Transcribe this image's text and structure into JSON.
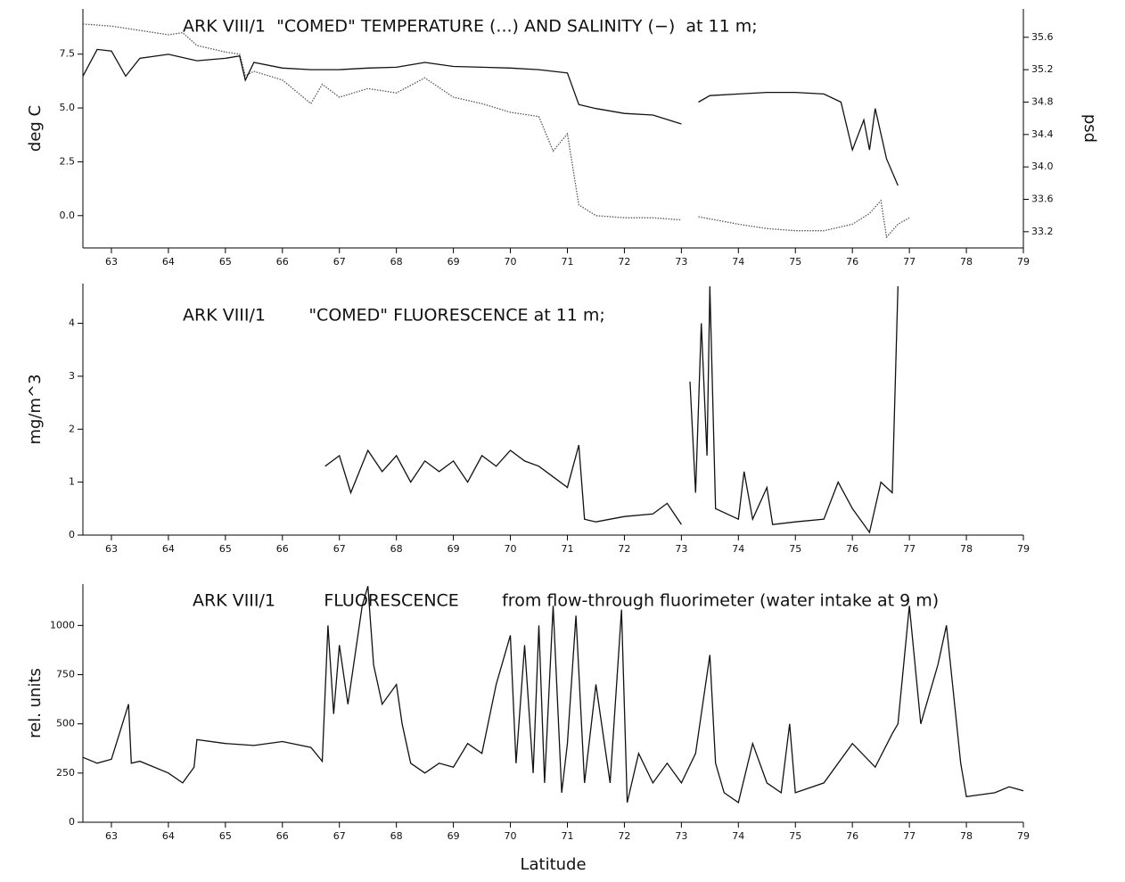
{
  "chart_data": [
    {
      "type": "line",
      "title": "ARK VIII/1  \"COMED\" TEMPERATURE (...) AND SALINITY (−)  at 11 m;",
      "y_label": "deg C",
      "y2_label": "psd",
      "xlim": [
        62.5,
        79
      ],
      "xticks": [
        63,
        64,
        65,
        66,
        67,
        68,
        69,
        70,
        71,
        72,
        73,
        74,
        75,
        76,
        77,
        78,
        79
      ],
      "ylim": [
        -1.5,
        9.6
      ],
      "yticks": [
        {
          "value": 0,
          "label": "0.0"
        },
        2.5,
        {
          "value": 5,
          "label": "5.0"
        },
        7.5
      ],
      "y2lim": [
        33.0,
        35.95
      ],
      "y2ticks": [
        33.2,
        33.6,
        {
          "value": 34,
          "label": "34.0"
        },
        34.4,
        34.8,
        35.2,
        35.6
      ],
      "series": [
        {
          "name": "TEMPERATURE",
          "color": "#555555",
          "style": "dotted",
          "axis": "y",
          "x": [
            62.5,
            63,
            63.5,
            64,
            64.25,
            64.5,
            65,
            65.25,
            65.35,
            65.5,
            66,
            66.5,
            66.7,
            67,
            67.5,
            68,
            68.5,
            69,
            69.5,
            70,
            70.5,
            70.75,
            71,
            71.2,
            71.5,
            72,
            72.5,
            73,
            73.1,
            73.3,
            74,
            74.5,
            75,
            75.5,
            76,
            76.3,
            76.5,
            76.6,
            76.8,
            77
          ],
          "values": [
            8.9,
            8.8,
            8.6,
            8.4,
            8.5,
            7.9,
            7.6,
            7.5,
            6.5,
            6.7,
            6.3,
            5.2,
            6.1,
            5.5,
            5.9,
            5.7,
            6.4,
            5.5,
            5.2,
            4.8,
            4.6,
            3.0,
            3.8,
            0.5,
            0.0,
            -0.1,
            -0.1,
            -0.2,
            null,
            -0.05,
            -0.4,
            -0.6,
            -0.7,
            -0.7,
            -0.4,
            0.1,
            0.7,
            -1.0,
            -0.4,
            -0.1
          ]
        },
        {
          "name": "SALINITY",
          "color": "#111111",
          "style": "solid",
          "axis": "y2",
          "x": [
            62.5,
            62.75,
            63,
            63.25,
            63.5,
            64,
            64.5,
            65,
            65.25,
            65.35,
            65.5,
            66,
            66.5,
            67,
            67.5,
            68,
            68.5,
            69,
            69.5,
            70,
            70.5,
            71,
            71.2,
            71.5,
            72,
            72.5,
            73,
            73.1,
            73.3,
            73.5,
            74,
            74.5,
            75,
            75.5,
            75.8,
            76,
            76.2,
            76.3,
            76.4,
            76.6,
            76.8
          ],
          "values": [
            35.12,
            35.45,
            35.43,
            35.12,
            35.34,
            35.39,
            35.31,
            35.34,
            35.37,
            35.07,
            35.29,
            35.22,
            35.2,
            35.2,
            35.22,
            35.23,
            35.29,
            35.24,
            35.23,
            35.22,
            35.2,
            35.16,
            34.77,
            34.72,
            34.66,
            34.64,
            34.53,
            null,
            34.8,
            34.88,
            34.9,
            34.92,
            34.92,
            34.9,
            34.8,
            34.21,
            34.58,
            34.21,
            34.72,
            34.1,
            33.77
          ]
        }
      ]
    },
    {
      "type": "line",
      "title": "ARK VIII/1        \"COMED\" FLUORESCENCE at 11 m;",
      "y_label": "mg/m^3",
      "xlim": [
        62.5,
        79
      ],
      "xticks": [
        63,
        64,
        65,
        66,
        67,
        68,
        69,
        70,
        71,
        72,
        73,
        74,
        75,
        76,
        77,
        78,
        79
      ],
      "ylim": [
        0,
        4.75
      ],
      "yticks": [
        0,
        1,
        2,
        3,
        4
      ],
      "series": [
        {
          "name": "FLUORESCENCE",
          "color": "#111111",
          "style": "solid",
          "axis": "y",
          "x": [
            66.75,
            67,
            67.2,
            67.5,
            67.75,
            68,
            68.25,
            68.5,
            68.75,
            69,
            69.25,
            69.5,
            69.75,
            70,
            70.25,
            70.5,
            70.75,
            71,
            71.2,
            71.3,
            71.5,
            72,
            72.5,
            72.75,
            73,
            73.1,
            73.15,
            73.25,
            73.35,
            73.45,
            73.5,
            73.6,
            74,
            74.1,
            74.25,
            74.5,
            74.6,
            75,
            75.5,
            75.75,
            76,
            76.3,
            76.5,
            76.7,
            76.8
          ],
          "values": [
            1.3,
            1.5,
            0.8,
            1.6,
            1.2,
            1.5,
            1.0,
            1.4,
            1.2,
            1.4,
            1.0,
            1.5,
            1.3,
            1.6,
            1.4,
            1.3,
            1.1,
            0.9,
            1.7,
            0.3,
            0.25,
            0.35,
            0.4,
            0.6,
            0.2,
            null,
            2.9,
            0.8,
            4.0,
            1.5,
            4.7,
            0.5,
            0.3,
            1.2,
            0.3,
            0.9,
            0.2,
            0.25,
            0.3,
            1.0,
            0.5,
            0.05,
            1.0,
            0.8,
            4.7
          ]
        }
      ]
    },
    {
      "type": "line",
      "title": "ARK VIII/1         FLUORESCENCE        from flow-through fluorimeter (water intake at 9 m)",
      "y_label": "rel. units",
      "x_label": "Latitude",
      "xlim": [
        62.5,
        79
      ],
      "xticks": [
        63,
        64,
        65,
        66,
        67,
        68,
        69,
        70,
        71,
        72,
        73,
        74,
        75,
        76,
        77,
        78,
        79
      ],
      "ylim": [
        0,
        1210
      ],
      "yticks": [
        0,
        250,
        500,
        750,
        1000
      ],
      "series": [
        {
          "name": "FLUORESCENCE",
          "color": "#111111",
          "style": "solid",
          "axis": "y",
          "x": [
            62.5,
            62.75,
            63,
            63.3,
            63.35,
            63.5,
            64,
            64.25,
            64.45,
            64.5,
            65,
            65.5,
            66,
            66.5,
            66.7,
            66.8,
            66.9,
            67,
            67.15,
            67.4,
            67.5,
            67.6,
            67.75,
            68,
            68.1,
            68.25,
            68.5,
            68.75,
            69,
            69.25,
            69.5,
            69.75,
            70,
            70.1,
            70.25,
            70.4,
            70.5,
            70.6,
            70.75,
            70.9,
            71,
            71.15,
            71.3,
            71.5,
            71.75,
            71.95,
            72.05,
            72.25,
            72.5,
            72.75,
            73,
            73.25,
            73.5,
            73.6,
            73.75,
            74,
            74.25,
            74.5,
            74.75,
            74.9,
            75,
            75.5,
            76,
            76.4,
            76.7,
            76.8,
            77,
            77.2,
            77.5,
            77.65,
            77.9,
            78,
            78.5,
            78.75,
            79
          ],
          "values": [
            330,
            300,
            320,
            600,
            300,
            310,
            250,
            200,
            280,
            420,
            400,
            390,
            410,
            380,
            310,
            1000,
            550,
            900,
            600,
            1100,
            1200,
            800,
            600,
            700,
            500,
            300,
            250,
            300,
            280,
            400,
            350,
            700,
            950,
            300,
            900,
            250,
            1000,
            200,
            1100,
            150,
            400,
            1050,
            200,
            700,
            200,
            1080,
            100,
            350,
            200,
            300,
            200,
            350,
            850,
            300,
            150,
            100,
            400,
            200,
            150,
            500,
            150,
            200,
            400,
            280,
            450,
            500,
            1100,
            500,
            800,
            1000,
            300,
            130,
            150,
            180,
            160
          ]
        }
      ]
    }
  ]
}
